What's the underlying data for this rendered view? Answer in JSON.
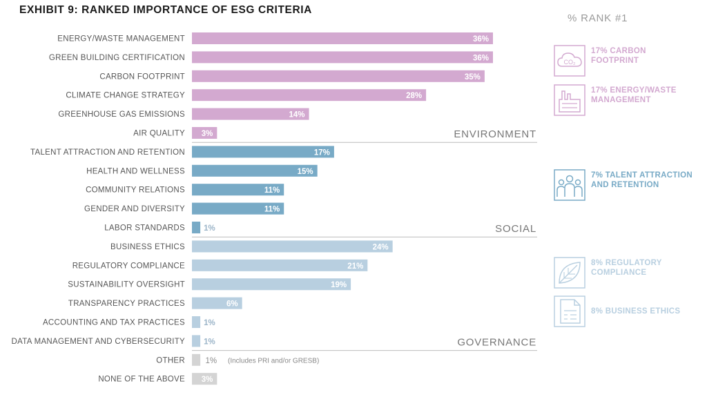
{
  "title": "EXHIBIT 9: RANKED IMPORTANCE OF ESG CRITERIA",
  "colors": {
    "environment": "#d3a9d0",
    "social": "#78aac6",
    "governance": "#b8cfe0",
    "other": "#d4d4d4",
    "separator": "#bbbbbb"
  },
  "chart_data": {
    "type": "bar",
    "orientation": "horizontal",
    "xlim": [
      0,
      36
    ],
    "categories": [
      "ENERGY/WASTE MANAGEMENT",
      "GREEN BUILDING CERTIFICATION",
      "CARBON FOOTPRINT",
      "CLIMATE CHANGE STRATEGY",
      "GREENHOUSE GAS EMISSIONS",
      "AIR QUALITY",
      "TALENT ATTRACTION AND RETENTION",
      "HEALTH AND WELLNESS",
      "COMMUNITY RELATIONS",
      "GENDER AND DIVERSITY",
      "LABOR STANDARDS",
      "BUSINESS ETHICS",
      "REGULATORY COMPLIANCE",
      "SUSTAINABILITY OVERSIGHT",
      "TRANSPARENCY PRACTICES",
      "ACCOUNTING AND TAX PRACTICES",
      "DATA MANAGEMENT AND CYBERSECURITY",
      "OTHER",
      "NONE OF THE ABOVE"
    ],
    "values": [
      36,
      36,
      35,
      28,
      14,
      3,
      17,
      15,
      11,
      11,
      1,
      24,
      21,
      19,
      6,
      1,
      1,
      1,
      3
    ],
    "value_labels": [
      "36%",
      "36%",
      "35%",
      "28%",
      "14%",
      "3%",
      "17%",
      "15%",
      "11%",
      "11%",
      "1%",
      "24%",
      "21%",
      "19%",
      "6%",
      "1%",
      "1%",
      "1%",
      "3%"
    ],
    "groups": [
      "environment",
      "environment",
      "environment",
      "environment",
      "environment",
      "environment",
      "social",
      "social",
      "social",
      "social",
      "social",
      "governance",
      "governance",
      "governance",
      "governance",
      "governance",
      "governance",
      "other",
      "other"
    ],
    "group_labels": [
      {
        "name": "ENVIRONMENT",
        "after_index": 5
      },
      {
        "name": "SOCIAL",
        "after_index": 10
      },
      {
        "name": "GOVERNANCE",
        "after_index": 16
      }
    ],
    "annotations": [
      {
        "index": 17,
        "text": "(Includes PRI and/or GRESB)"
      }
    ]
  },
  "rank_panel": {
    "title": "% RANK #1",
    "items": [
      {
        "icon": "co2-icon",
        "text": "17% CARBON FOOTPRINT",
        "lines": [
          "17% CARBON",
          "FOOTPRINT"
        ],
        "group": "environment"
      },
      {
        "icon": "factory-icon",
        "text": "17% ENERGY/WASTE MANAGEMENT",
        "lines": [
          "17% ENERGY/WASTE",
          "MANAGEMENT"
        ],
        "group": "environment"
      },
      {
        "icon": "people-icon",
        "text": "7% TALENT ATTRACTION AND RETENTION",
        "lines": [
          "7% TALENT ATTRACTION",
          "AND RETENTION"
        ],
        "group": "social"
      },
      {
        "icon": "leaf-icon",
        "text": "8% REGULATORY COMPLIANCE",
        "lines": [
          "8% REGULATORY",
          "COMPLIANCE"
        ],
        "group": "governance"
      },
      {
        "icon": "document-icon",
        "text": "8% BUSINESS ETHICS",
        "lines": [
          "8% BUSINESS ETHICS"
        ],
        "group": "governance"
      }
    ]
  }
}
